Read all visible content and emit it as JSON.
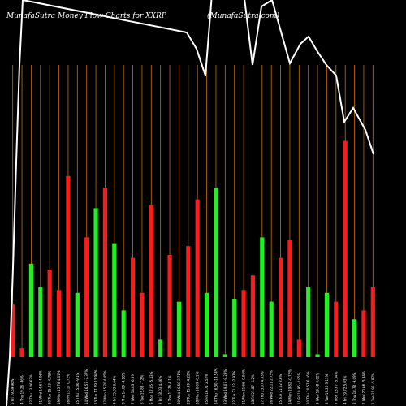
{
  "chart_data": {
    "type": "bar",
    "title": "MunafaSutra  Money Flow  Charts for XXRP",
    "watermark": "(MunafaSutra.com)",
    "colors": {
      "background": "#000000",
      "up": "#22ee22",
      "down": "#ff1a1a",
      "grid": "#c87000",
      "line": "#ffffff"
    },
    "grid": true,
    "ylim": [
      0,
      100
    ],
    "bars": [
      {
        "label": "5 Fri 19.69 96%",
        "value": 18,
        "color": "down"
      },
      {
        "label": "4 Thu 19.26 -96%",
        "value": 3,
        "color": "down"
      },
      {
        "label": "22 Thu 13.46 62%",
        "value": 32,
        "color": "up"
      },
      {
        "label": "21 Wed 14.67 4.06%",
        "value": 24,
        "color": "up"
      },
      {
        "label": "20 Tue 15.03 -4.75%",
        "value": 30,
        "color": "down"
      },
      {
        "label": "19 Mon 15.78 4.01%",
        "value": 23,
        "color": "down"
      },
      {
        "label": "16 Fri 15.17 0.72%",
        "value": 62,
        "color": "down"
      },
      {
        "label": "15 Thu 15.06 -9.1%",
        "value": 22,
        "color": "up"
      },
      {
        "label": "14 Wed 16.57 -7.37%",
        "value": 41,
        "color": "down"
      },
      {
        "label": "13 Tue 17.89 13.98%",
        "value": 51,
        "color": "up"
      },
      {
        "label": "12 Mon 15.70 4.45%",
        "value": 58,
        "color": "down"
      },
      {
        "label": "9 Fri 15.03 6.64%",
        "value": 39,
        "color": "up"
      },
      {
        "label": "8 Thu 14.09 -4.98%",
        "value": 16,
        "color": "up"
      },
      {
        "label": "7 Wed 14.83 -6.3%",
        "value": 34,
        "color": "down"
      },
      {
        "label": "6 Tue 15.83 -7.2%",
        "value": 22,
        "color": "down"
      },
      {
        "label": "5 Mon 17.05 -5.43%",
        "value": 52,
        "color": "down"
      },
      {
        "label": "2 Fri 18.03 4.46%",
        "value": 6,
        "color": "up"
      },
      {
        "label": "1 Thu 17.26 4.1%",
        "value": 35,
        "color": "down"
      },
      {
        "label": "30 Wed 16.58 3.71%",
        "value": 19,
        "color": "up"
      },
      {
        "label": "29 Tue 15.99 -4.22%",
        "value": 38,
        "color": "down"
      },
      {
        "label": "28 Mon 16.69 -0.1%",
        "value": 54,
        "color": "down"
      },
      {
        "label": "25 Fri 16.71 2.52%",
        "value": 22,
        "color": "up"
      },
      {
        "label": "24 Thu 16.30 -14.54%",
        "value": 58,
        "color": "up"
      },
      {
        "label": "23 Wed 19.07 -9.29%",
        "value": 1,
        "color": "up"
      },
      {
        "label": "22 Tue 21.02 -2.97%",
        "value": 20,
        "color": "up"
      },
      {
        "label": "21 Mon 21.66 -0.95%",
        "value": 23,
        "color": "down"
      },
      {
        "label": "18 Fri 21.87 -5.2%",
        "value": 28,
        "color": "down"
      },
      {
        "label": "17 Thu 23.07 4.33%",
        "value": 41,
        "color": "up"
      },
      {
        "label": "16 Wed 22.11 2.73%",
        "value": 19,
        "color": "up"
      },
      {
        "label": "15 Tue 21.52 8.6%",
        "value": 34,
        "color": "down"
      },
      {
        "label": "14 Mon 19.82 -0.72%",
        "value": 40,
        "color": "down"
      },
      {
        "label": "11 Fri 19.96 -2.95%",
        "value": 6,
        "color": "down"
      },
      {
        "label": "10 Thu 20.57 6.16%",
        "value": 24,
        "color": "up"
      },
      {
        "label": "9 Wed 19.38 0.62%",
        "value": 1,
        "color": "up"
      },
      {
        "label": "8 Tue 19.26 3.13%",
        "value": 22,
        "color": "up"
      },
      {
        "label": "7 Mon 18.67 -5.34%",
        "value": 19,
        "color": "down"
      },
      {
        "label": "4 Fri 19.72 5.03%",
        "value": 74,
        "color": "down"
      },
      {
        "label": "3 Thu 18.78 -9.09%",
        "value": 13,
        "color": "up"
      },
      {
        "label": "2 Wed 20.66 -5.94%",
        "value": 16,
        "color": "down"
      },
      {
        "label": "1 Tue 21.96 -5.87%",
        "value": 24,
        "color": "down"
      }
    ],
    "price_line": [
      {
        "label": "b1",
        "value": 128
      },
      {
        "label": "p1",
        "value": 100
      },
      {
        "label": "p2",
        "value": 96
      },
      {
        "label": "p3",
        "value": 93
      },
      {
        "label": "p4",
        "value": 95
      }
    ],
    "price_line_visible": [
      {
        "label": "a1",
        "value": 105
      },
      {
        "label": "a2",
        "value": 102
      },
      {
        "label": "a3",
        "value": 98
      },
      {
        "label": "a4",
        "value": 80
      },
      {
        "label": "a5",
        "value": 100
      },
      {
        "label": "a6",
        "value": 105
      },
      {
        "label": "a7",
        "value": 92
      },
      {
        "label": "a8",
        "value": 96
      },
      {
        "label": "a9",
        "value": 97
      },
      {
        "label": "a10",
        "value": 93
      },
      {
        "label": "a11",
        "value": 89
      },
      {
        "label": "a12",
        "value": 87
      },
      {
        "label": "a13",
        "value": 74
      },
      {
        "label": "a14",
        "value": 77
      },
      {
        "label": "a15",
        "value": 72
      },
      {
        "label": "a16",
        "value": 63
      }
    ]
  }
}
